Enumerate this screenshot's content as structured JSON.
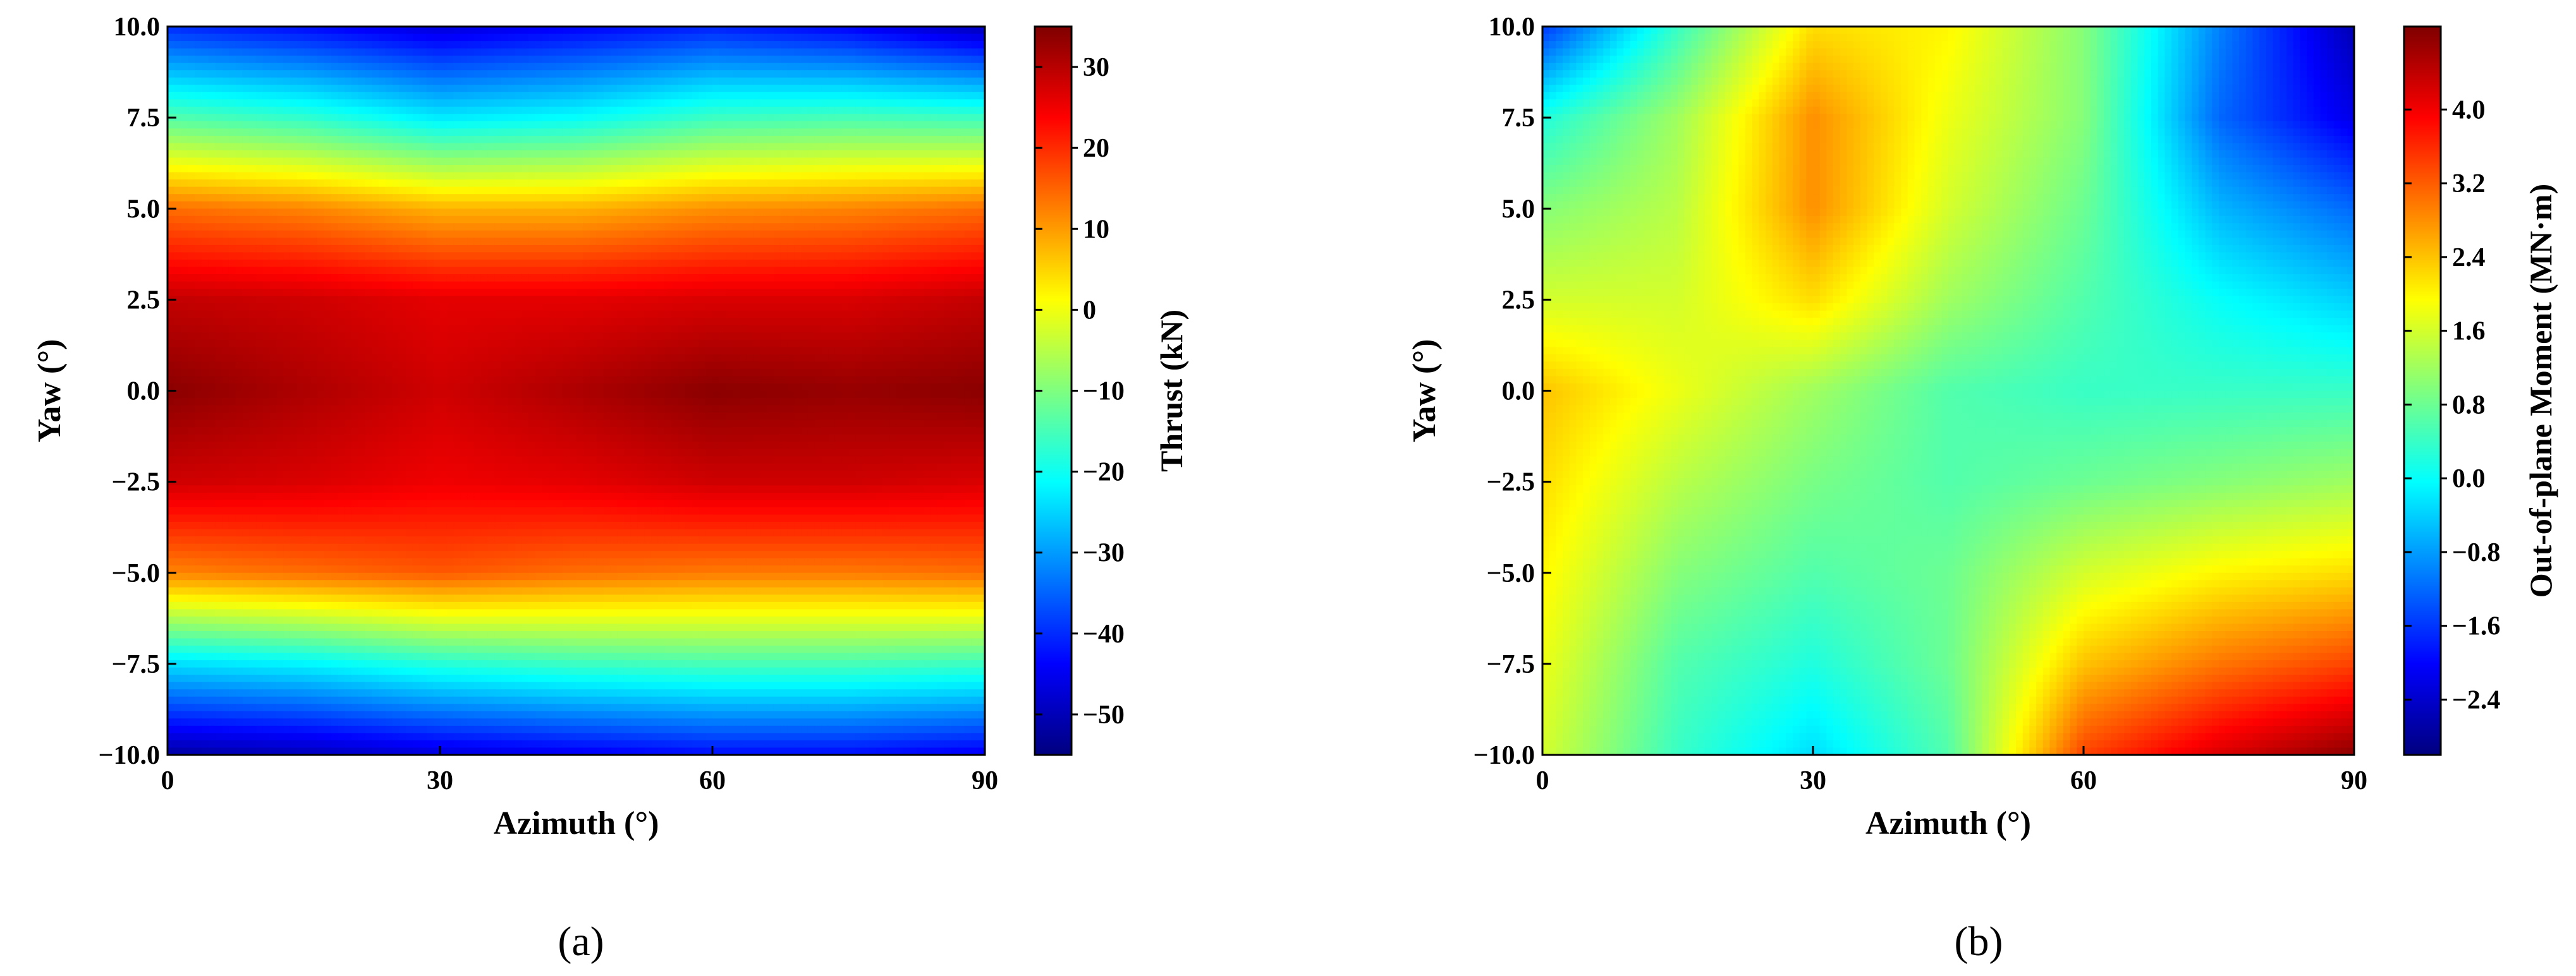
{
  "colormap": [
    "#00007f",
    "#0000ff",
    "#007fff",
    "#00ffff",
    "#7fff7f",
    "#ffff00",
    "#ff7f00",
    "#ff0000",
    "#7f0000"
  ],
  "chart_data": [
    {
      "type": "heatmap",
      "caption": "(a)",
      "xlabel": "Azimuth (°)",
      "ylabel": "Yaw (°)",
      "xlim": [
        0,
        90
      ],
      "ylim": [
        -10,
        10
      ],
      "x_ticks": [
        0,
        30,
        60,
        90
      ],
      "y_ticks": [
        "−10.0",
        "−7.5",
        "−5.0",
        "−2.5",
        "0.0",
        "2.5",
        "5.0",
        "7.5",
        "10.0"
      ],
      "x": [
        0,
        15,
        30,
        45,
        60,
        75,
        90
      ],
      "y": [
        -10,
        -7.5,
        -5,
        -2.5,
        0,
        2.5,
        5,
        7.5,
        10
      ],
      "z": [
        [
          -52,
          -50,
          -47,
          -45,
          -43,
          -43,
          -45
        ],
        [
          -24,
          -22,
          -18,
          -16,
          -15,
          -15,
          -16
        ],
        [
          12,
          14,
          16,
          14,
          13,
          13,
          14
        ],
        [
          28,
          27,
          25,
          26,
          28,
          28,
          27
        ],
        [
          34,
          31,
          28,
          31,
          34,
          33,
          34
        ],
        [
          29,
          28,
          26,
          26,
          27,
          27,
          29
        ],
        [
          14,
          12,
          8,
          8,
          11,
          12,
          14
        ],
        [
          -14,
          -17,
          -23,
          -21,
          -16,
          -15,
          -16
        ],
        [
          -40,
          -43,
          -47,
          -44,
          -41,
          -44,
          -50
        ]
      ],
      "colorbar": {
        "label": "Thrust (kN)",
        "range": [
          -55,
          35
        ],
        "ticks": [
          "30",
          "20",
          "10",
          "0",
          "−10",
          "−20",
          "−30",
          "−40",
          "−50"
        ],
        "tick_values": [
          30,
          20,
          10,
          0,
          -10,
          -20,
          -30,
          -40,
          -50
        ]
      }
    },
    {
      "type": "heatmap",
      "caption": "(b)",
      "xlabel": "Azimuth (°)",
      "ylabel": "Yaw (°)",
      "xlim": [
        0,
        90
      ],
      "ylim": [
        -10,
        10
      ],
      "x_ticks": [
        0,
        30,
        60,
        90
      ],
      "y_ticks": [
        "−10.0",
        "−7.5",
        "−5.0",
        "−2.5",
        "0.0",
        "2.5",
        "5.0",
        "7.5",
        "10.0"
      ],
      "x": [
        0,
        15,
        30,
        45,
        60,
        75,
        90
      ],
      "y": [
        -10,
        -7.5,
        -5,
        -2.5,
        0,
        2.5,
        5,
        7.5,
        10
      ],
      "z": [
        [
          1.6,
          0.4,
          -0.3,
          0.6,
          3.4,
          4.2,
          4.8
        ],
        [
          1.8,
          0.6,
          0.2,
          0.8,
          2.4,
          3.0,
          3.4
        ],
        [
          2.0,
          1.0,
          0.6,
          0.8,
          1.6,
          2.0,
          2.2
        ],
        [
          2.2,
          1.4,
          0.9,
          0.6,
          0.8,
          1.0,
          1.2
        ],
        [
          2.4,
          1.8,
          1.2,
          0.6,
          0.4,
          0.4,
          0.4
        ],
        [
          1.6,
          1.6,
          2.2,
          1.2,
          0.6,
          0.0,
          -0.4
        ],
        [
          1.0,
          1.4,
          2.8,
          1.6,
          0.8,
          -0.6,
          -1.2
        ],
        [
          0.2,
          1.2,
          2.8,
          1.8,
          1.0,
          -1.2,
          -2.2
        ],
        [
          -1.6,
          0.4,
          2.2,
          2.0,
          1.0,
          -1.0,
          -2.6
        ]
      ],
      "colorbar": {
        "label": "Out-of-plane Moment (MN·m)",
        "range": [
          -3.0,
          4.9
        ],
        "ticks": [
          "4.0",
          "3.2",
          "2.4",
          "1.6",
          "0.8",
          "0.0",
          "−0.8",
          "−1.6",
          "−2.4"
        ],
        "tick_values": [
          4.0,
          3.2,
          2.4,
          1.6,
          0.8,
          0.0,
          -0.8,
          -1.6,
          -2.4
        ]
      }
    }
  ]
}
